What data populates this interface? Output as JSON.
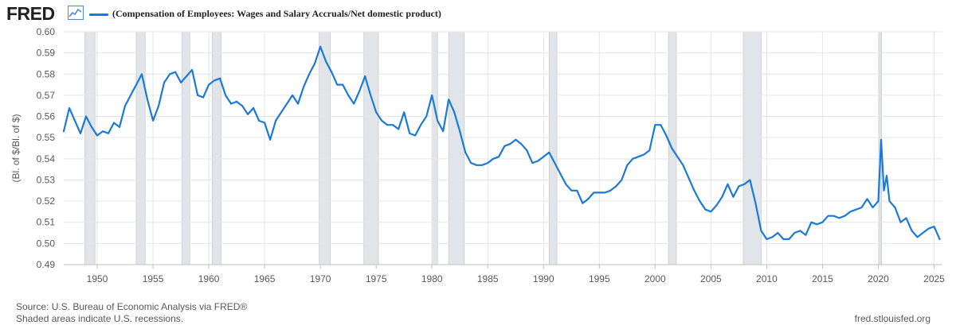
{
  "header": {
    "logo": "FRED",
    "legend_label": "(Compensation of Employees: Wages and Salary Accruals/Net domestic product)"
  },
  "colors": {
    "series": "#1a7ad9",
    "recession": "#e1e5e9",
    "grid": "#e6e6e6",
    "text": "#595959",
    "logo_icon": "#4e8ccf"
  },
  "footer": {
    "source": "Source: U.S. Bureau of Economic Analysis via FRED®",
    "shaded": "Shaded areas indicate U.S. recessions.",
    "url": "fred.stlouisfed.org"
  },
  "chart_data": {
    "type": "line",
    "title": "(Compensation of Employees: Wages and Salary Accruals/Net domestic product)",
    "ylabel": "(Bl. of $/Bl. of $)",
    "xlabel": "",
    "xlim": [
      1947.0,
      2025.75
    ],
    "ylim": [
      0.49,
      0.6
    ],
    "x_ticks": [
      1950,
      1955,
      1960,
      1965,
      1970,
      1975,
      1980,
      1985,
      1990,
      1995,
      2000,
      2005,
      2010,
      2015,
      2020,
      2025
    ],
    "y_ticks": [
      0.49,
      0.5,
      0.51,
      0.52,
      0.53,
      0.54,
      0.55,
      0.56,
      0.57,
      0.58,
      0.59,
      0.6
    ],
    "grid": true,
    "recessions": [
      [
        1948.9,
        1949.8
      ],
      [
        1953.5,
        1954.3
      ],
      [
        1957.6,
        1958.3
      ],
      [
        1960.3,
        1961.1
      ],
      [
        1969.9,
        1970.9
      ],
      [
        1973.9,
        1975.2
      ],
      [
        1980.0,
        1980.5
      ],
      [
        1981.5,
        1982.9
      ],
      [
        1990.5,
        1991.2
      ],
      [
        2001.2,
        2001.9
      ],
      [
        2007.9,
        2009.5
      ],
      [
        2020.1,
        2020.3
      ]
    ],
    "series": [
      {
        "name": "(Compensation of Employees: Wages and Salary Accruals/Net domestic product)",
        "x": [
          1947.0,
          1947.5,
          1948.0,
          1948.5,
          1949.0,
          1949.5,
          1950.0,
          1950.5,
          1951.0,
          1951.5,
          1952.0,
          1952.5,
          1953.0,
          1953.5,
          1954.0,
          1954.5,
          1955.0,
          1955.5,
          1956.0,
          1956.5,
          1957.0,
          1957.5,
          1958.0,
          1958.5,
          1959.0,
          1959.5,
          1960.0,
          1960.5,
          1961.0,
          1961.5,
          1962.0,
          1962.5,
          1963.0,
          1963.5,
          1964.0,
          1964.5,
          1965.0,
          1965.5,
          1966.0,
          1966.5,
          1967.0,
          1967.5,
          1968.0,
          1968.5,
          1969.0,
          1969.5,
          1970.0,
          1970.5,
          1971.0,
          1971.5,
          1972.0,
          1972.5,
          1973.0,
          1973.5,
          1974.0,
          1974.5,
          1975.0,
          1975.5,
          1976.0,
          1976.5,
          1977.0,
          1977.5,
          1978.0,
          1978.5,
          1979.0,
          1979.5,
          1980.0,
          1980.5,
          1981.0,
          1981.5,
          1982.0,
          1982.5,
          1983.0,
          1983.5,
          1984.0,
          1984.5,
          1985.0,
          1985.5,
          1986.0,
          1986.5,
          1987.0,
          1987.5,
          1988.0,
          1988.5,
          1989.0,
          1989.5,
          1990.0,
          1990.5,
          1991.0,
          1991.5,
          1992.0,
          1992.5,
          1993.0,
          1993.5,
          1994.0,
          1994.5,
          1995.0,
          1995.5,
          1996.0,
          1996.5,
          1997.0,
          1997.5,
          1998.0,
          1998.5,
          1999.0,
          1999.5,
          2000.0,
          2000.5,
          2001.0,
          2001.5,
          2002.0,
          2002.5,
          2003.0,
          2003.5,
          2004.0,
          2004.5,
          2005.0,
          2005.5,
          2006.0,
          2006.5,
          2007.0,
          2007.5,
          2008.0,
          2008.5,
          2009.0,
          2009.5,
          2010.0,
          2010.5,
          2011.0,
          2011.5,
          2012.0,
          2012.5,
          2013.0,
          2013.5,
          2014.0,
          2014.5,
          2015.0,
          2015.5,
          2016.0,
          2016.5,
          2017.0,
          2017.5,
          2018.0,
          2018.5,
          2019.0,
          2019.5,
          2020.0,
          2020.25,
          2020.5,
          2020.75,
          2021.0,
          2021.5,
          2022.0,
          2022.5,
          2023.0,
          2023.5,
          2024.0,
          2024.5,
          2025.0,
          2025.5
        ],
        "values": [
          0.553,
          0.564,
          0.558,
          0.552,
          0.56,
          0.555,
          0.551,
          0.553,
          0.552,
          0.557,
          0.555,
          0.565,
          0.57,
          0.575,
          0.58,
          0.568,
          0.558,
          0.565,
          0.576,
          0.58,
          0.581,
          0.576,
          0.579,
          0.582,
          0.57,
          0.569,
          0.575,
          0.577,
          0.578,
          0.57,
          0.566,
          0.567,
          0.565,
          0.561,
          0.564,
          0.558,
          0.557,
          0.549,
          0.558,
          0.562,
          0.566,
          0.57,
          0.566,
          0.574,
          0.58,
          0.585,
          0.593,
          0.586,
          0.581,
          0.575,
          0.575,
          0.57,
          0.566,
          0.572,
          0.579,
          0.57,
          0.562,
          0.558,
          0.556,
          0.556,
          0.554,
          0.562,
          0.552,
          0.551,
          0.556,
          0.56,
          0.57,
          0.558,
          0.553,
          0.568,
          0.562,
          0.553,
          0.543,
          0.538,
          0.537,
          0.537,
          0.538,
          0.54,
          0.541,
          0.546,
          0.547,
          0.549,
          0.547,
          0.544,
          0.538,
          0.539,
          0.541,
          0.543,
          0.538,
          0.533,
          0.528,
          0.525,
          0.525,
          0.519,
          0.521,
          0.524,
          0.524,
          0.524,
          0.525,
          0.527,
          0.53,
          0.537,
          0.54,
          0.541,
          0.542,
          0.544,
          0.556,
          0.556,
          0.551,
          0.545,
          0.541,
          0.537,
          0.531,
          0.525,
          0.52,
          0.516,
          0.515,
          0.518,
          0.522,
          0.528,
          0.522,
          0.527,
          0.528,
          0.53,
          0.519,
          0.506,
          0.502,
          0.503,
          0.505,
          0.502,
          0.502,
          0.505,
          0.506,
          0.504,
          0.51,
          0.509,
          0.51,
          0.513,
          0.513,
          0.512,
          0.513,
          0.515,
          0.516,
          0.517,
          0.521,
          0.517,
          0.52,
          0.549,
          0.525,
          0.532,
          0.52,
          0.517,
          0.51,
          0.512,
          0.506,
          0.503,
          0.505,
          0.507,
          0.508,
          0.502
        ]
      }
    ]
  }
}
